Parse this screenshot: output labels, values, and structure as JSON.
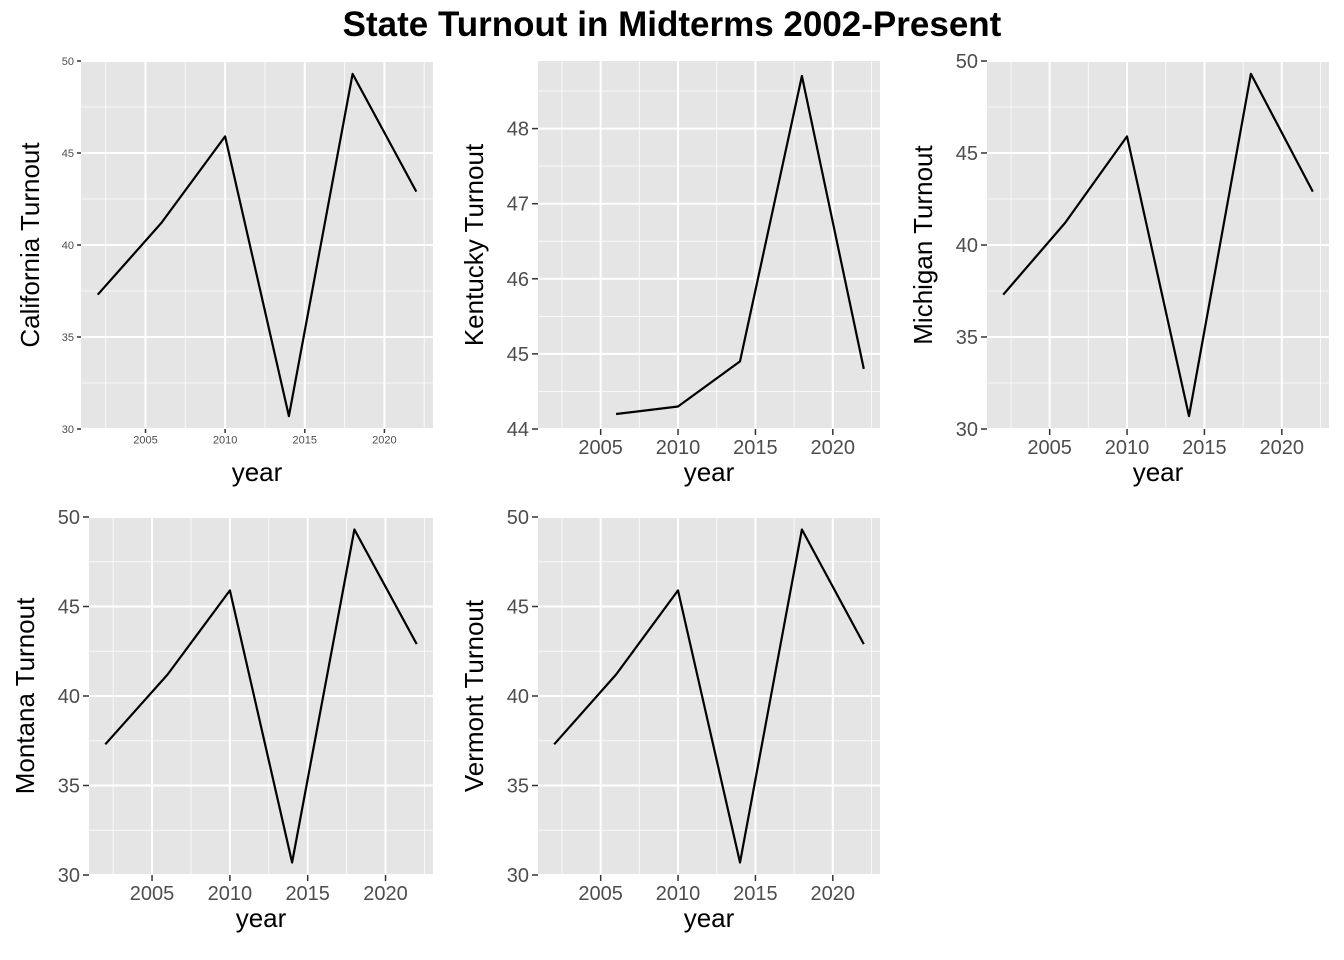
{
  "title": "State Turnout in Midterms 2002-Present",
  "chart_data": [
    {
      "type": "line",
      "xlabel": "year",
      "ylabel": "California Turnout",
      "x": [
        2002,
        2006,
        2010,
        2014,
        2018,
        2022
      ],
      "y": [
        37.3,
        41.2,
        45.9,
        30.7,
        49.3,
        42.9
      ],
      "xlim": [
        2000.95,
        2023.05
      ],
      "ylim": [
        30,
        50
      ],
      "xticks": [
        2005,
        2010,
        2015,
        2020
      ],
      "yticks": [
        30,
        35,
        40,
        45,
        50
      ],
      "grid": true
    },
    {
      "type": "line",
      "xlabel": "year",
      "ylabel": "Kentucky Turnout",
      "x": [
        2006,
        2010,
        2014,
        2018,
        2022
      ],
      "y": [
        44.2,
        44.3,
        44.9,
        48.7,
        44.8
      ],
      "xlim": [
        2000.95,
        2023.05
      ],
      "ylim": [
        44,
        48.9
      ],
      "xticks": [
        2005,
        2010,
        2015,
        2020
      ],
      "yticks": [
        44,
        45,
        46,
        47,
        48
      ],
      "grid": true
    },
    {
      "type": "line",
      "xlabel": "year",
      "ylabel": "Michigan Turnout",
      "x": [
        2002,
        2006,
        2010,
        2014,
        2018,
        2022
      ],
      "y": [
        37.3,
        41.2,
        45.9,
        30.7,
        49.3,
        42.9
      ],
      "xlim": [
        2000.95,
        2023.05
      ],
      "ylim": [
        30,
        50
      ],
      "xticks": [
        2005,
        2010,
        2015,
        2020
      ],
      "yticks": [
        30,
        35,
        40,
        45,
        50
      ],
      "grid": true
    },
    {
      "type": "line",
      "xlabel": "year",
      "ylabel": "Montana Turnout",
      "x": [
        2002,
        2006,
        2010,
        2014,
        2018,
        2022
      ],
      "y": [
        37.3,
        41.2,
        45.9,
        30.7,
        49.3,
        42.9
      ],
      "xlim": [
        2000.95,
        2023.05
      ],
      "ylim": [
        30,
        50
      ],
      "xticks": [
        2005,
        2010,
        2015,
        2020
      ],
      "yticks": [
        30,
        35,
        40,
        45,
        50
      ],
      "grid": true
    },
    {
      "type": "line",
      "xlabel": "year",
      "ylabel": "Vermont Turnout",
      "x": [
        2002,
        2006,
        2010,
        2014,
        2018,
        2022
      ],
      "y": [
        37.3,
        41.2,
        45.9,
        30.7,
        49.3,
        42.9
      ],
      "xlim": [
        2000.95,
        2023.05
      ],
      "ylim": [
        30,
        50
      ],
      "xticks": [
        2005,
        2010,
        2015,
        2020
      ],
      "yticks": [
        30,
        35,
        40,
        45,
        50
      ],
      "grid": true
    }
  ]
}
